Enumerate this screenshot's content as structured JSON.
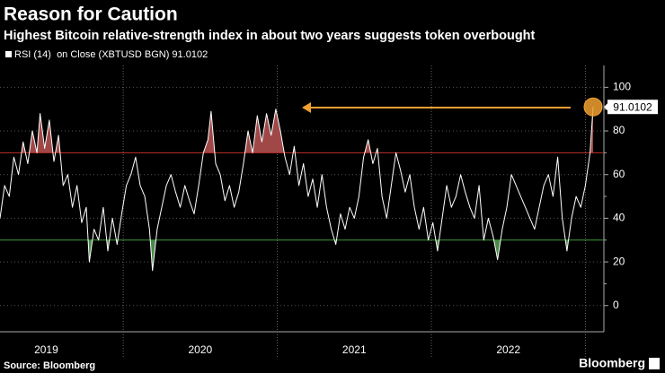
{
  "chart_data": {
    "type": "line",
    "title": "Reason for Caution",
    "subtitle": "Highest Bitcoin relative-strength index in about two years suggests token overbought",
    "source": "Source: Bloomberg",
    "brand": "Bloomberg",
    "series": [
      {
        "name": "RSI (14)  on Close (XBTUSD BGN) 91.0102",
        "color": "#ffffff",
        "x": [
          2019.2,
          2019.23,
          2019.26,
          2019.29,
          2019.32,
          2019.35,
          2019.38,
          2019.41,
          2019.44,
          2019.46,
          2019.49,
          2019.52,
          2019.55,
          2019.58,
          2019.61,
          2019.64,
          2019.67,
          2019.7,
          2019.73,
          2019.76,
          2019.78,
          2019.81,
          2019.84,
          2019.87,
          2019.9,
          2019.93,
          2019.96,
          2019.99,
          2020.02,
          2020.05,
          2020.08,
          2020.11,
          2020.14,
          2020.17,
          2020.19,
          2020.22,
          2020.25,
          2020.28,
          2020.31,
          2020.34,
          2020.37,
          2020.4,
          2020.43,
          2020.46,
          2020.49,
          2020.52,
          2020.55,
          2020.57,
          2020.6,
          2020.63,
          2020.66,
          2020.69,
          2020.72,
          2020.75,
          2020.78,
          2020.81,
          2020.84,
          2020.87,
          2020.9,
          2020.93,
          2020.96,
          2020.99,
          2021.02,
          2021.05,
          2021.08,
          2021.11,
          2021.14,
          2021.17,
          2021.2,
          2021.23,
          2021.26,
          2021.29,
          2021.32,
          2021.35,
          2021.38,
          2021.41,
          2021.44,
          2021.47,
          2021.5,
          2021.53,
          2021.56,
          2021.59,
          2021.62,
          2021.65,
          2021.68,
          2021.71,
          2021.74,
          2021.77,
          2021.8,
          2021.83,
          2021.86,
          2021.89,
          2021.92,
          2021.95,
          2021.98,
          2022.01,
          2022.04,
          2022.07,
          2022.1,
          2022.13,
          2022.16,
          2022.19,
          2022.22,
          2022.25,
          2022.28,
          2022.31,
          2022.34,
          2022.37,
          2022.4,
          2022.43,
          2022.46,
          2022.49,
          2022.52,
          2022.55,
          2022.58,
          2022.61,
          2022.64,
          2022.67,
          2022.7,
          2022.73,
          2022.76,
          2022.79,
          2022.82,
          2022.85,
          2022.88,
          2022.91,
          2022.94,
          2022.97,
          2023.0,
          2023.03,
          2023.05
        ],
        "values": [
          40,
          55,
          50,
          68,
          60,
          75,
          65,
          80,
          70,
          88,
          72,
          85,
          66,
          78,
          55,
          60,
          45,
          55,
          38,
          45,
          20,
          35,
          30,
          45,
          25,
          40,
          28,
          42,
          55,
          60,
          68,
          55,
          50,
          35,
          16,
          35,
          45,
          55,
          60,
          52,
          45,
          55,
          48,
          42,
          55,
          70,
          76,
          89,
          65,
          60,
          48,
          55,
          45,
          52,
          65,
          80,
          70,
          87,
          75,
          88,
          78,
          90,
          80,
          68,
          60,
          73,
          55,
          65,
          50,
          58,
          45,
          60,
          45,
          35,
          28,
          42,
          35,
          45,
          40,
          50,
          68,
          76,
          65,
          72,
          50,
          40,
          55,
          70,
          62,
          52,
          60,
          45,
          35,
          45,
          30,
          38,
          25,
          40,
          55,
          45,
          50,
          60,
          52,
          45,
          40,
          55,
          30,
          40,
          32,
          21,
          35,
          45,
          60,
          55,
          50,
          45,
          40,
          35,
          45,
          55,
          60,
          50,
          68,
          40,
          25,
          40,
          50,
          45,
          55,
          70,
          91.0102
        ]
      }
    ],
    "bands": [
      {
        "value": 70,
        "color": "#c0302c",
        "fill": "#a04848"
      },
      {
        "value": 30,
        "color": "#3d9a3d",
        "fill": "#4a8a4a"
      }
    ],
    "xlim": [
      2019.2,
      2023.12
    ],
    "xticks": [
      {
        "value": 2019.5,
        "label": "2019"
      },
      {
        "value": 2020.5,
        "label": "2020"
      },
      {
        "value": 2021.5,
        "label": "2021"
      },
      {
        "value": 2022.5,
        "label": "2022"
      }
    ],
    "ylim": [
      -12,
      110
    ],
    "yticks": [
      0,
      20,
      40,
      60,
      80,
      100
    ],
    "grid": true,
    "annotation_color": "#f0a030"
  }
}
